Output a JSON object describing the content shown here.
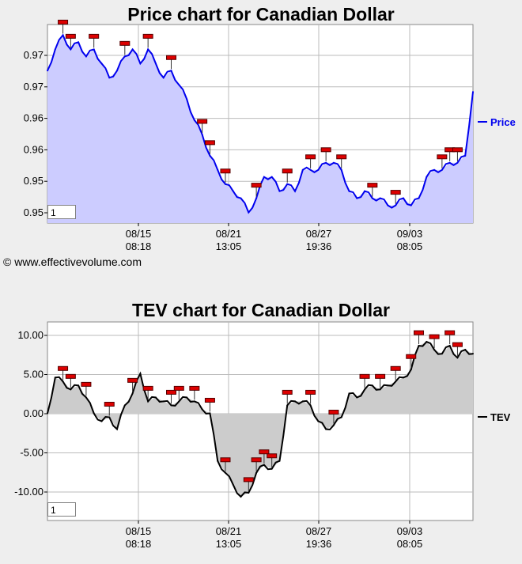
{
  "price": {
    "title": "Price chart for Canadian Dollar",
    "box_value": "1"
  },
  "tev": {
    "title": "TEV chart for Canadian Dollar",
    "box_value": "1"
  },
  "credit": "© www.effectivevolume.com",
  "chart_data": [
    {
      "type": "area",
      "title": "Price chart for Canadian Dollar",
      "y_tick_labels": [
        "0.97",
        "0.97",
        "0.96",
        "0.96",
        "0.95",
        "0.95"
      ],
      "ylim": [
        0.9475,
        0.9755
      ],
      "x_tick_labels": [
        [
          "08/15",
          "08:18"
        ],
        [
          "08/21",
          "13:05"
        ],
        [
          "08/27",
          "19:36"
        ],
        [
          "09/03",
          "08:05"
        ]
      ],
      "grid": true,
      "legend": "right",
      "series": [
        {
          "name": "Price",
          "color": "#0000ee",
          "fill": "#ccccff",
          "values": [
            0.969,
            0.972,
            0.974,
            0.972,
            0.973,
            0.971,
            0.972,
            0.97,
            0.968,
            0.969,
            0.971,
            0.972,
            0.97,
            0.972,
            0.97,
            0.968,
            0.969,
            0.967,
            0.965,
            0.962,
            0.96,
            0.957,
            0.955,
            0.953,
            0.952,
            0.951,
            0.949,
            0.951,
            0.954,
            0.954,
            0.952,
            0.953,
            0.952,
            0.955,
            0.955,
            0.955,
            0.956,
            0.956,
            0.955,
            0.952,
            0.951,
            0.952,
            0.951,
            0.951,
            0.95,
            0.95,
            0.951,
            0.95,
            0.951,
            0.954,
            0.955,
            0.955,
            0.956,
            0.956,
            0.957,
            0.966
          ]
        }
      ],
      "markers": [
        2,
        3,
        6,
        10,
        13,
        16,
        20,
        21,
        23,
        27,
        31,
        34,
        36,
        38,
        42,
        45,
        51,
        52,
        53
      ]
    },
    {
      "type": "area",
      "title": "TEV chart for Canadian Dollar",
      "y_tick_labels": [
        "10.00",
        "5.00",
        "0.00",
        "-5.00",
        "-10.00"
      ],
      "ylim": [
        -13.5,
        11.5
      ],
      "x_tick_labels": [
        [
          "08/15",
          "08:18"
        ],
        [
          "08/21",
          "13:05"
        ],
        [
          "08/27",
          "19:36"
        ],
        [
          "09/03",
          "08:05"
        ]
      ],
      "grid": true,
      "legend": "right",
      "series": [
        {
          "name": "TEV",
          "color": "#000000",
          "fill": "#cccccc",
          "values": [
            0.0,
            4.5,
            4.0,
            3.0,
            3.5,
            2.0,
            0.0,
            -1.0,
            -0.5,
            -2.0,
            1.0,
            2.5,
            5.0,
            1.5,
            2.0,
            1.5,
            1.0,
            1.5,
            2.0,
            1.5,
            0.5,
            0.0,
            -6.0,
            -7.5,
            -9.0,
            -10.5,
            -10.0,
            -7.5,
            -6.5,
            -7.0,
            -6.0,
            1.0,
            1.5,
            1.5,
            1.0,
            -1.0,
            -2.0,
            -1.5,
            -0.5,
            2.5,
            2.0,
            3.0,
            3.5,
            3.0,
            3.5,
            4.0,
            4.5,
            5.5,
            8.5,
            9.0,
            8.0,
            7.5,
            8.5,
            7.0,
            8.0,
            7.5
          ]
        }
      ],
      "markers": [
        2,
        3,
        5,
        8,
        11,
        13,
        16,
        17,
        19,
        21,
        23,
        26,
        27,
        28,
        29,
        31,
        34,
        37,
        41,
        43,
        45,
        47,
        48,
        50,
        52,
        53
      ]
    }
  ]
}
